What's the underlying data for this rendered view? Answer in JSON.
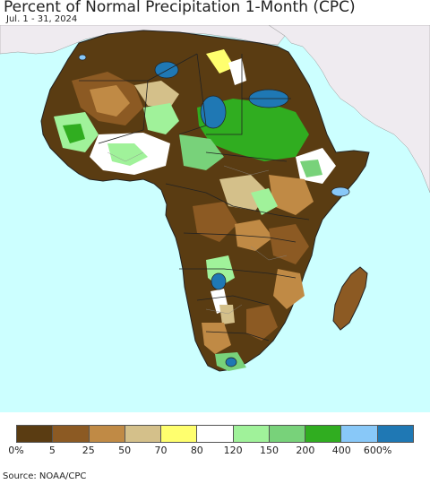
{
  "title": "Percent of Normal Precipitation 1-Month (CPC)",
  "subtitle": "Jul. 1 - 31, 2024",
  "source": "Source: NOAA/CPC",
  "colors": {
    "ocean": "#ccffff",
    "non_africa_land": "#efebf0",
    "border": "#222222",
    "sub_border": "#888888"
  },
  "legend": {
    "bins": [
      {
        "color": "#5a3c12"
      },
      {
        "color": "#8c5a23"
      },
      {
        "color": "#c08a45"
      },
      {
        "color": "#d4c08a"
      },
      {
        "color": "#ffff6e"
      },
      {
        "color": "#ffffff"
      },
      {
        "color": "#a0f29a"
      },
      {
        "color": "#78d27a"
      },
      {
        "color": "#30ad20"
      },
      {
        "color": "#88c8f8"
      },
      {
        "color": "#1f78b4"
      }
    ],
    "labels": [
      "0%",
      "5",
      "25",
      "50",
      "70",
      "80",
      "120",
      "150",
      "200",
      "400",
      "600%"
    ]
  }
}
